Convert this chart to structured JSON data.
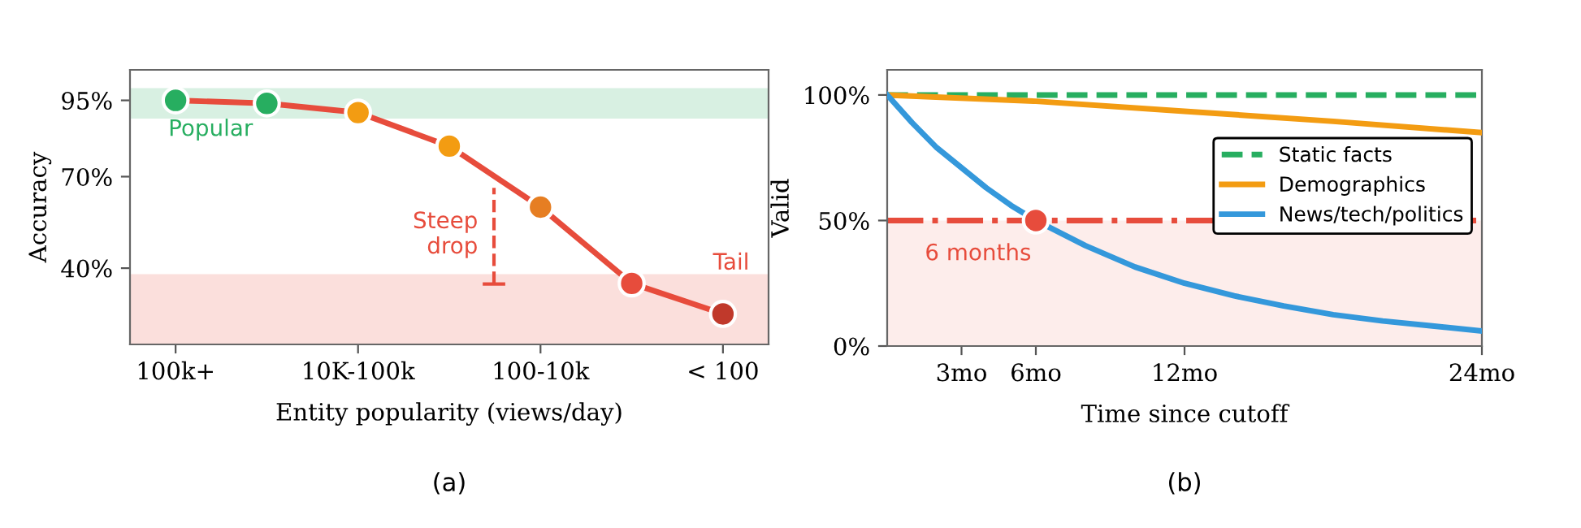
{
  "chart_data": [
    {
      "type": "line",
      "xlabel": "Entity popularity (views/day)",
      "ylabel": "Accuracy",
      "categories": [
        "100k+",
        null,
        "10K-100k",
        null,
        "100-10k",
        null,
        "< 100"
      ],
      "series": [
        {
          "color": "#e74c3c",
          "colors": [
            "#27ae60",
            "#27ae60",
            "#f39c12",
            "#f39c12",
            "#e67e22",
            "#e74c3c",
            "#c0392b"
          ],
          "values": [
            95,
            94,
            91,
            80,
            60,
            35,
            25
          ]
        }
      ],
      "ylim": [
        15,
        105
      ],
      "yticks": [
        {
          "value": 40,
          "label": "40%"
        },
        {
          "value": 70,
          "label": "70%"
        },
        {
          "value": 95,
          "label": "95%"
        }
      ],
      "bands": [
        {
          "axis": "y",
          "from": 89,
          "to": 99,
          "label": "Popular",
          "color": "#27ae60"
        },
        {
          "axis": "y",
          "from": 15,
          "to": 38,
          "label": "Tail",
          "color": "#e74c3c"
        }
      ],
      "annotations": [
        "Steep\ndrop",
        "(a)"
      ],
      "marker": "circle",
      "grid": false,
      "legend": false
    },
    {
      "type": "line",
      "xlabel": "Time since cutoff",
      "ylabel": "Valid",
      "series": [
        {
          "name": "Static facts",
          "color": "#27ae60",
          "line_style": "dashed",
          "x": [
            0,
            24
          ],
          "values": [
            100,
            100
          ]
        },
        {
          "name": "Demographics",
          "color": "#f39c12",
          "line_style": "solid",
          "x": [
            0,
            6,
            12,
            18,
            24
          ],
          "values": [
            100,
            97.5,
            93.5,
            89.5,
            85
          ]
        },
        {
          "name": "News/tech/politics",
          "color": "#3498db",
          "line_style": "solid",
          "x": [
            0,
            1,
            2,
            3,
            4,
            5,
            6,
            8,
            10,
            12,
            14,
            16,
            18,
            20,
            22,
            24
          ],
          "values": [
            100,
            89,
            79,
            71,
            63,
            56,
            50,
            40,
            31.5,
            25,
            20,
            16,
            12.5,
            10,
            8,
            6
          ]
        }
      ],
      "xlim": [
        0,
        24
      ],
      "xticks": [
        {
          "value": 3,
          "label": "3mo"
        },
        {
          "value": 6,
          "label": "6mo"
        },
        {
          "value": 12,
          "label": "12mo"
        },
        {
          "value": 24,
          "label": "24mo"
        }
      ],
      "ylim": [
        0,
        110
      ],
      "yticks": [
        {
          "value": 0,
          "label": "0%"
        },
        {
          "value": 50,
          "label": "50%"
        },
        {
          "value": 100,
          "label": "100%"
        }
      ],
      "ref_lines": [
        {
          "axis": "y",
          "value": 50,
          "color": "#e74c3c",
          "line_style": "dashdot"
        }
      ],
      "bands": [
        {
          "axis": "y",
          "from": 0,
          "to": 50,
          "color": "#e74c3c"
        }
      ],
      "annotations": [
        {
          "text": "6 months",
          "x": 6,
          "y": 50
        },
        "(b)"
      ],
      "marker": "none",
      "grid": false,
      "legend": "right"
    }
  ]
}
